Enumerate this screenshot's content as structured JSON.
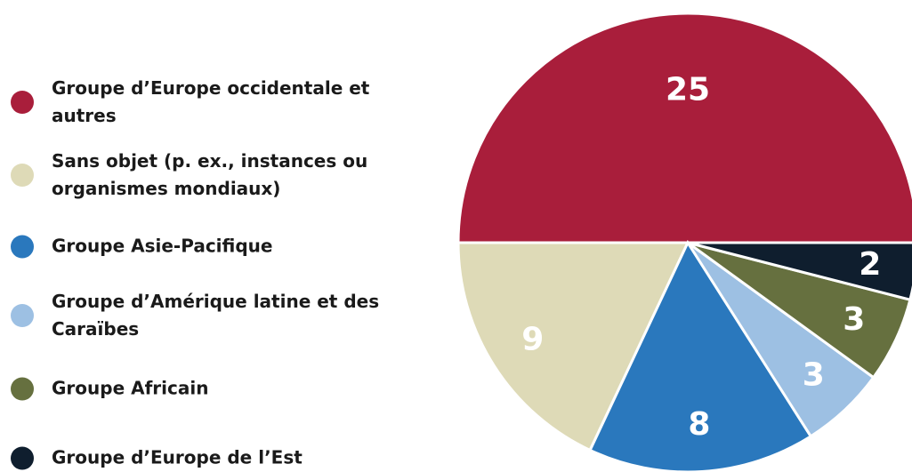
{
  "chart_data": {
    "type": "pie",
    "categories": [
      "Groupe d’Europe occidentale et autres",
      "Sans objet (p. ex., instances ou organismes mondiaux)",
      "Groupe Asie-Pacifique",
      "Groupe d’Amérique latine et des Caraïbes",
      "Groupe Africain",
      "Groupe d’Europe de l’Est"
    ],
    "values": [
      25,
      9,
      8,
      3,
      3,
      2
    ],
    "colors": [
      "#a91e3b",
      "#dedab7",
      "#2a78bd",
      "#9dc0e3",
      "#66703f",
      "#0f1e2e"
    ]
  }
}
